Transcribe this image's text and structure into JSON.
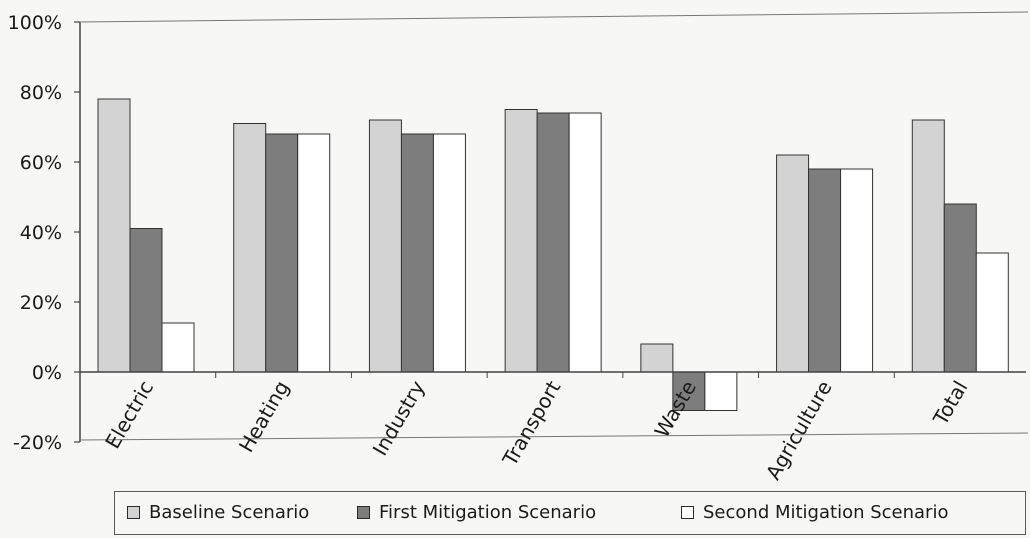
{
  "chart_data": {
    "type": "bar",
    "categories": [
      "Electric",
      "Heating",
      "Industry",
      "Transport",
      "Waste",
      "Agriculture",
      "Total"
    ],
    "series": [
      {
        "name": "Baseline Scenario",
        "values": [
          78,
          71,
          72,
          75,
          8,
          62,
          72
        ],
        "color": "#d3d3d3"
      },
      {
        "name": "First Mitigation Scenario",
        "values": [
          41,
          68,
          68,
          74,
          -11,
          58,
          48
        ],
        "color": "#7d7d7d"
      },
      {
        "name": "Second Mitigation Scenario",
        "values": [
          14,
          68,
          68,
          74,
          -11,
          58,
          34
        ],
        "color": "#ffffff"
      }
    ],
    "yticks": [
      "100%",
      "80%",
      "60%",
      "40%",
      "20%",
      "0%",
      "-20%"
    ],
    "ylim": [
      -20,
      100
    ],
    "grid": false,
    "legend_position": "bottom"
  }
}
